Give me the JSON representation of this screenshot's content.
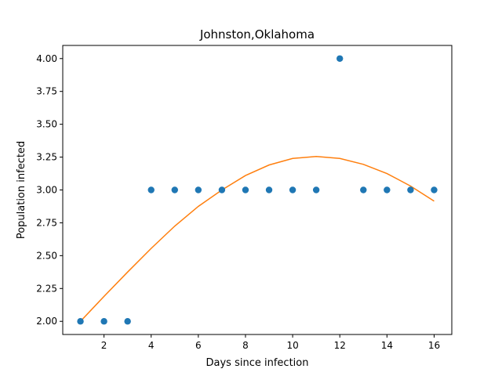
{
  "chart_data": {
    "type": "scatter",
    "title": "Johnston,Oklahoma",
    "xlabel": "Days since infection",
    "ylabel": "Population infected",
    "xlim": [
      0.25,
      16.75
    ],
    "ylim": [
      1.9,
      4.1
    ],
    "xticks": [
      2,
      4,
      6,
      8,
      10,
      12,
      14,
      16
    ],
    "yticks": [
      2.0,
      2.25,
      2.5,
      2.75,
      3.0,
      3.25,
      3.5,
      3.75,
      4.0
    ],
    "ytick_labels": [
      "2.00",
      "2.25",
      "2.50",
      "2.75",
      "3.00",
      "3.25",
      "3.50",
      "3.75",
      "4.00"
    ],
    "grid": false,
    "series": [
      {
        "kind": "scatter",
        "color": "#1f77b4",
        "x": [
          1,
          2,
          3,
          4,
          5,
          6,
          7,
          8,
          9,
          10,
          11,
          12,
          13,
          14,
          15,
          16
        ],
        "y": [
          2,
          2,
          2,
          3,
          3,
          3,
          3,
          3,
          3,
          3,
          3,
          4,
          3,
          3,
          3,
          3
        ]
      },
      {
        "kind": "line",
        "color": "#ff7f0e",
        "x": [
          1,
          2,
          3,
          4,
          5,
          6,
          7,
          8,
          9,
          10,
          11,
          12,
          13,
          14,
          15,
          16
        ],
        "y": [
          2.0,
          2.19,
          2.375,
          2.555,
          2.725,
          2.875,
          3.0,
          3.11,
          3.19,
          3.24,
          3.255,
          3.24,
          3.195,
          3.125,
          3.03,
          2.915
        ]
      }
    ]
  }
}
